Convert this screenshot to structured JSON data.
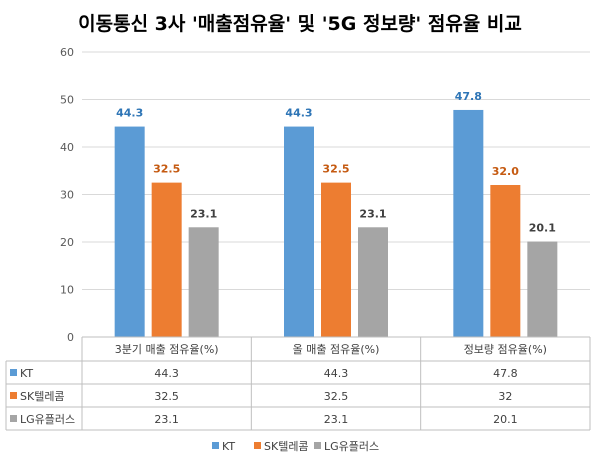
{
  "chart_data": {
    "type": "bar",
    "title": "이동통신 3사 '매출점유율' 및 '5G 정보량' 점유율 비교",
    "categories": [
      "3분기 매출 점유율(%)",
      "올 매출 점유율(%)",
      "정보량 점유율(%)"
    ],
    "series": [
      {
        "name": "KT",
        "color": "#5b9bd5",
        "label_color": "#2e75b6",
        "values": [
          44.3,
          44.3,
          47.8
        ],
        "labels": [
          "44.3",
          "44.3",
          "47.8"
        ],
        "table": [
          "44.3",
          "44.3",
          "47.8"
        ]
      },
      {
        "name": "SK텔레콤",
        "color": "#ed7d31",
        "label_color": "#c55a11",
        "values": [
          32.5,
          32.5,
          32.0
        ],
        "labels": [
          "32.5",
          "32.5",
          "32.0"
        ],
        "table": [
          "32.5",
          "32.5",
          "32"
        ]
      },
      {
        "name": "LG유플러스",
        "color": "#a5a5a5",
        "label_color": "#404040",
        "values": [
          23.1,
          23.1,
          20.1
        ],
        "labels": [
          "23.1",
          "23.1",
          "20.1"
        ],
        "table": [
          "23.1",
          "23.1",
          "20.1"
        ]
      }
    ],
    "ylim": [
      0,
      60
    ],
    "yticks": [
      "0",
      "10",
      "20",
      "30",
      "40",
      "50",
      "60"
    ],
    "grid": true,
    "legend": "bottom",
    "data_table": true
  }
}
